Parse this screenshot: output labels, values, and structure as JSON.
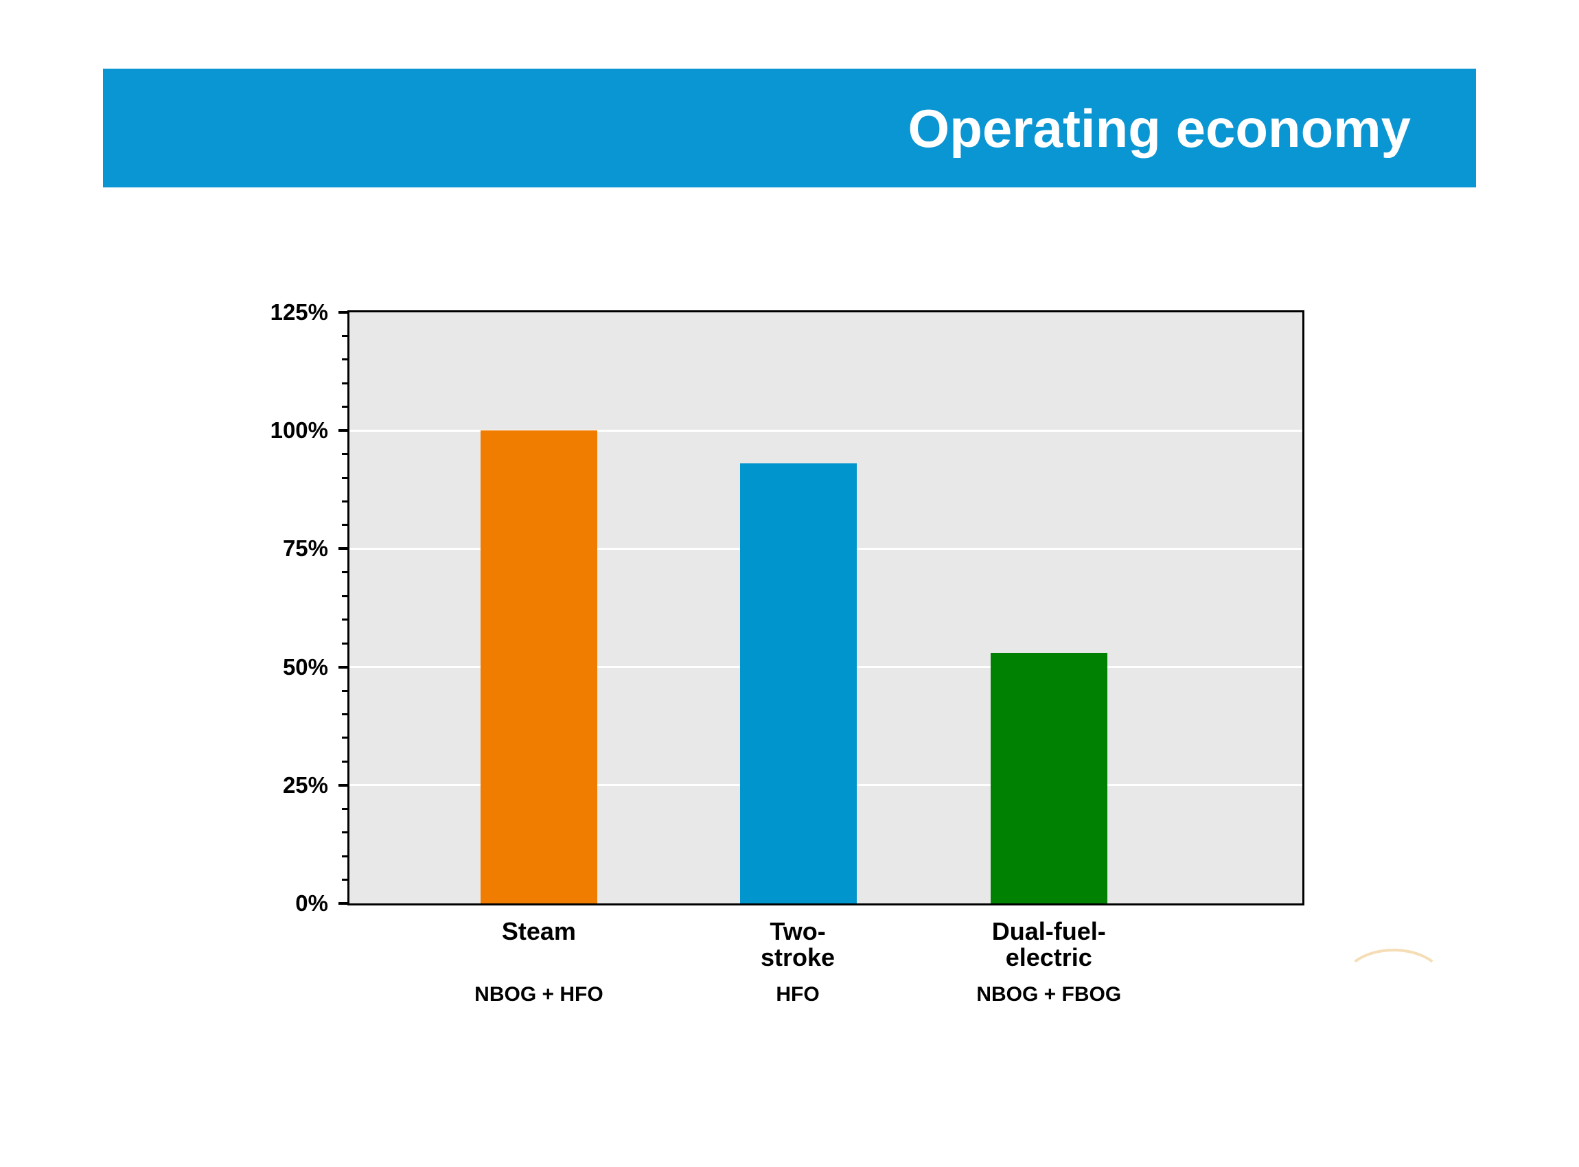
{
  "header": {
    "title": "Operating economy",
    "background_color": "#0a95d3",
    "text_color": "#ffffff"
  },
  "chart_data": {
    "type": "bar",
    "title": "Operating economy",
    "categories": [
      "Steam",
      "Two-stroke",
      "Dual-fuel-electric"
    ],
    "category_display_lines": [
      [
        "Steam"
      ],
      [
        "Two-",
        "stroke"
      ],
      [
        "Dual-fuel-",
        "electric"
      ]
    ],
    "sub_labels": [
      "NBOG + HFO",
      "HFO",
      "NBOG + FBOG"
    ],
    "values": [
      100,
      93,
      53
    ],
    "unit": "%",
    "bar_colors": [
      "#f07d00",
      "#0195ce",
      "#018101"
    ],
    "ylim": [
      0,
      125
    ],
    "y_tick_values": [
      0,
      25,
      50,
      75,
      100,
      125
    ],
    "y_tick_labels": [
      "0%",
      "25%",
      "50%",
      "75%",
      "100%",
      "125%"
    ],
    "y_minor_tick_step": 5,
    "xlabel": "",
    "ylabel": "",
    "legend": "none",
    "grid": "horizontal-major",
    "plot_background_color": "#e8e8e8",
    "gridline_color": "#ffffff",
    "axis_color": "#000000"
  }
}
